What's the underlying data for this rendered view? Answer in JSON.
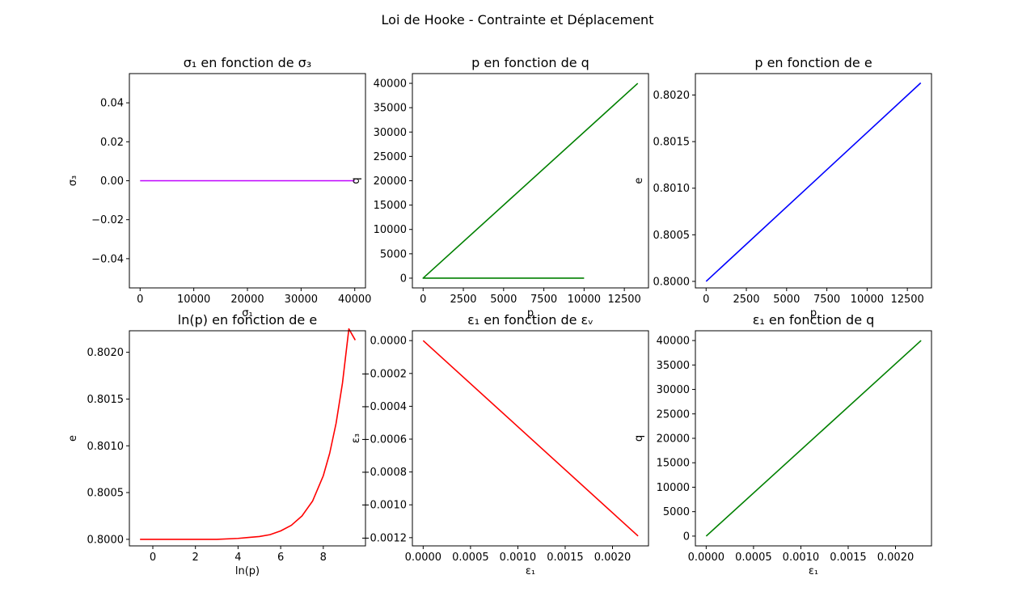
{
  "figure": {
    "title": "Loi de Hooke - Contrainte et Déplacement"
  },
  "chart_data": [
    {
      "type": "line",
      "title": "σ₁ en fonction de σ₃",
      "xlabel": "σ₁",
      "ylabel": "σ₃",
      "xlim": [
        -2000,
        42000
      ],
      "ylim": [
        -0.055,
        0.055
      ],
      "xticks": [
        0,
        10000,
        20000,
        30000,
        40000
      ],
      "xtick_labels": [
        "0",
        "10000",
        "20000",
        "30000",
        "40000"
      ],
      "yticks": [
        -0.04,
        -0.02,
        0.0,
        0.02,
        0.04
      ],
      "ytick_labels": [
        "−0.04",
        "−0.02",
        "0.00",
        "0.02",
        "0.04"
      ],
      "grid": false,
      "series": [
        {
          "color": "#bf00ff",
          "x": [
            0,
            40000
          ],
          "y": [
            0,
            0
          ]
        }
      ]
    },
    {
      "type": "line",
      "title": "p en fonction de q",
      "xlabel": "p",
      "ylabel": "q",
      "xlim": [
        -666,
        14000
      ],
      "ylim": [
        -2000,
        42000
      ],
      "xticks": [
        0,
        2500,
        5000,
        7500,
        10000,
        12500
      ],
      "xtick_labels": [
        "0",
        "2500",
        "5000",
        "7500",
        "10000",
        "12500"
      ],
      "yticks": [
        0,
        5000,
        10000,
        15000,
        20000,
        25000,
        30000,
        35000,
        40000
      ],
      "ytick_labels": [
        "0",
        "5000",
        "10000",
        "15000",
        "20000",
        "25000",
        "30000",
        "35000",
        "40000"
      ],
      "grid": false,
      "series": [
        {
          "color": "#008000",
          "x": [
            10000,
            0,
            13333
          ],
          "y": [
            0,
            0,
            40000
          ]
        }
      ]
    },
    {
      "type": "line",
      "title": "p en fonction de e",
      "xlabel": "p",
      "ylabel": "e",
      "xlim": [
        -666,
        14000
      ],
      "ylim": [
        0.79993,
        0.80223
      ],
      "xticks": [
        0,
        2500,
        5000,
        7500,
        10000,
        12500
      ],
      "xtick_labels": [
        "0",
        "2500",
        "5000",
        "7500",
        "10000",
        "12500"
      ],
      "yticks": [
        0.8,
        0.8005,
        0.801,
        0.8015,
        0.802
      ],
      "ytick_labels": [
        "0.8000",
        "0.8005",
        "0.8010",
        "0.8015",
        "0.8020"
      ],
      "grid": false,
      "series": [
        {
          "color": "#0000ff",
          "x": [
            0,
            13333
          ],
          "y": [
            0.8,
            0.80213
          ]
        }
      ]
    },
    {
      "type": "line",
      "title": "ln(p) en fonction de e",
      "xlabel": "ln(p)",
      "ylabel": "e",
      "xlim": [
        -1.1,
        9.98
      ],
      "ylim": [
        0.79993,
        0.80223
      ],
      "xticks": [
        0,
        2,
        4,
        6,
        8
      ],
      "xtick_labels": [
        "0",
        "2",
        "4",
        "6",
        "8"
      ],
      "yticks": [
        0.8,
        0.8005,
        0.801,
        0.8015,
        0.802
      ],
      "ytick_labels": [
        "0.8000",
        "0.8005",
        "0.8010",
        "0.8015",
        "0.8020"
      ],
      "grid": false,
      "series": [
        {
          "color": "#ff0000",
          "x": [
            -0.6,
            1,
            2,
            3,
            4,
            4.5,
            5,
            5.5,
            6,
            6.5,
            7,
            7.5,
            8,
            8.3,
            8.6,
            8.9,
            9.2,
            9.5
          ],
          "y": [
            0.8,
            0.8,
            0.8,
            0.8,
            0.80001,
            0.80002,
            0.80003,
            0.80005,
            0.80009,
            0.80015,
            0.80025,
            0.80041,
            0.80068,
            0.80092,
            0.80124,
            0.80167,
            0.80225,
            0.80213
          ]
        }
      ]
    },
    {
      "type": "line",
      "title": "ε₁ en fonction de εᵥ",
      "xlabel": "ε₁",
      "ylabel": "ε₃",
      "xlim": [
        -0.000114,
        0.00238
      ],
      "ylim": [
        -0.00125,
        6e-05
      ],
      "xticks": [
        0,
        0.0005,
        0.001,
        0.0015,
        0.002
      ],
      "xtick_labels": [
        "0.0000",
        "0.0005",
        "0.0010",
        "0.0015",
        "0.0020"
      ],
      "yticks": [
        0,
        -0.0002,
        -0.0004,
        -0.0006,
        -0.0008,
        -0.001,
        -0.0012
      ],
      "ytick_labels": [
        "0.0000",
        "−0.0002",
        "−0.0004",
        "−0.0006",
        "−0.0008",
        "−0.0010",
        "−0.0012"
      ],
      "grid": false,
      "series": [
        {
          "color": "#ff0000",
          "x": [
            0,
            0.00227
          ],
          "y": [
            0,
            -0.00119
          ]
        }
      ]
    },
    {
      "type": "line",
      "title": "ε₁ en fonction de q",
      "xlabel": "ε₁",
      "ylabel": "q",
      "xlim": [
        -0.000114,
        0.00238
      ],
      "ylim": [
        -2000,
        42000
      ],
      "xticks": [
        0,
        0.0005,
        0.001,
        0.0015,
        0.002
      ],
      "xtick_labels": [
        "0.0000",
        "0.0005",
        "0.0010",
        "0.0015",
        "0.0020"
      ],
      "yticks": [
        0,
        5000,
        10000,
        15000,
        20000,
        25000,
        30000,
        35000,
        40000
      ],
      "ytick_labels": [
        "0",
        "5000",
        "10000",
        "15000",
        "20000",
        "25000",
        "30000",
        "35000",
        "40000"
      ],
      "grid": false,
      "series": [
        {
          "color": "#008000",
          "x": [
            0,
            0.00227
          ],
          "y": [
            0,
            40000
          ]
        }
      ]
    }
  ]
}
